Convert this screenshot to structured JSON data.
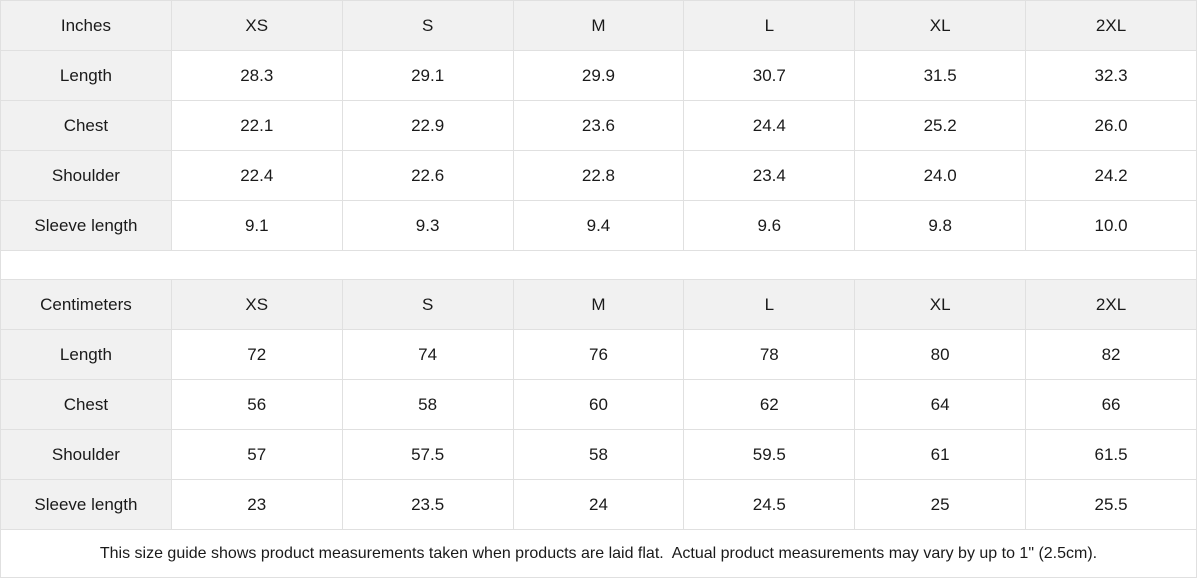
{
  "colors": {
    "header_bg": "#f1f1f1",
    "border": "#e0e0e0",
    "text": "#1a1a1a",
    "cell_bg": "#ffffff"
  },
  "chart_data": [
    {
      "type": "table",
      "unit": "Inches",
      "sizes": [
        "XS",
        "S",
        "M",
        "L",
        "XL",
        "2XL"
      ],
      "rows": [
        {
          "label": "Length",
          "values": [
            "28.3",
            "29.1",
            "29.9",
            "30.7",
            "31.5",
            "32.3"
          ]
        },
        {
          "label": "Chest",
          "values": [
            "22.1",
            "22.9",
            "23.6",
            "24.4",
            "25.2",
            "26.0"
          ]
        },
        {
          "label": "Shoulder",
          "values": [
            "22.4",
            "22.6",
            "22.8",
            "23.4",
            "24.0",
            "24.2"
          ]
        },
        {
          "label": "Sleeve length",
          "values": [
            "9.1",
            "9.3",
            "9.4",
            "9.6",
            "9.8",
            "10.0"
          ]
        }
      ]
    },
    {
      "type": "table",
      "unit": "Centimeters",
      "sizes": [
        "XS",
        "S",
        "M",
        "L",
        "XL",
        "2XL"
      ],
      "rows": [
        {
          "label": "Length",
          "values": [
            "72",
            "74",
            "76",
            "78",
            "80",
            "82"
          ]
        },
        {
          "label": "Chest",
          "values": [
            "56",
            "58",
            "60",
            "62",
            "64",
            "66"
          ]
        },
        {
          "label": "Shoulder",
          "values": [
            "57",
            "57.5",
            "58",
            "59.5",
            "61",
            "61.5"
          ]
        },
        {
          "label": "Sleeve length",
          "values": [
            "23",
            "23.5",
            "24",
            "24.5",
            "25",
            "25.5"
          ]
        }
      ]
    }
  ],
  "footer": {
    "note": "This size guide shows product measurements taken when products are laid flat.  Actual product measurements may vary by up to 1\" (2.5cm)."
  }
}
